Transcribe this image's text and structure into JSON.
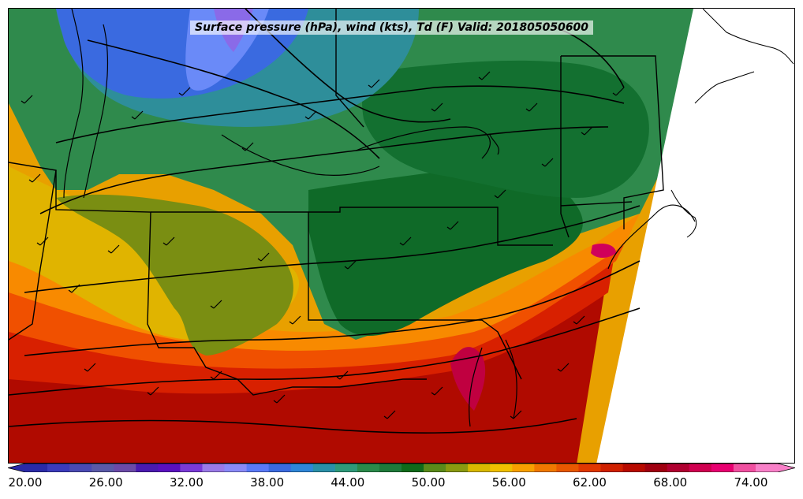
{
  "title": "Surface pressure (hPa), wind (kts), Td (F) Valid: 201805050600",
  "colorbar": {
    "min": 20,
    "max": 76,
    "step": 2,
    "colors": [
      "#2a2aa8",
      "#3b3bbc",
      "#4a4ab4",
      "#5a5aa8",
      "#6b4aa8",
      "#4a1ab0",
      "#5a10c0",
      "#7a3ad8",
      "#9a7ae8",
      "#8a8af8",
      "#5a7af8",
      "#3a6ae0",
      "#2e86d8",
      "#2a90a8",
      "#2e9a7a",
      "#2a8a4a",
      "#1f7a3a",
      "#0f6a1a",
      "#5a8a1a",
      "#8a9a10",
      "#d8b800",
      "#f0c000",
      "#f8a000",
      "#f07800",
      "#e85800",
      "#e03800",
      "#d02000",
      "#b80a00",
      "#a00010",
      "#b00030",
      "#d00050",
      "#e80070",
      "#f050a0",
      "#f880c8"
    ],
    "tick_labels": [
      "20.00",
      "26.00",
      "32.00",
      "38.00",
      "44.00",
      "50.00",
      "56.00",
      "62.00",
      "68.00",
      "74.00"
    ]
  },
  "map": {
    "field": "dewpoint",
    "overlays": [
      "isobars",
      "wind-barbs",
      "state-borders",
      "coastline"
    ]
  }
}
